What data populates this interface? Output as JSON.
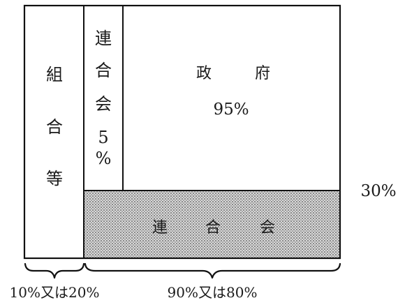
{
  "blocks": {
    "kumiai": {
      "chars": [
        "組",
        "合",
        "等"
      ]
    },
    "rengokai_vertical": {
      "chars": [
        "連",
        "合",
        "会",
        "5",
        "%"
      ]
    },
    "seifu": {
      "name_chars": [
        "政",
        "府"
      ],
      "percent": "95%"
    },
    "rengokai_bottom": {
      "chars": [
        "連",
        "合",
        "会"
      ],
      "fill_color": "#c8c8c8"
    }
  },
  "side_label": "30%",
  "braces": {
    "left": "10%又は20%",
    "right": "90%又は80%"
  }
}
